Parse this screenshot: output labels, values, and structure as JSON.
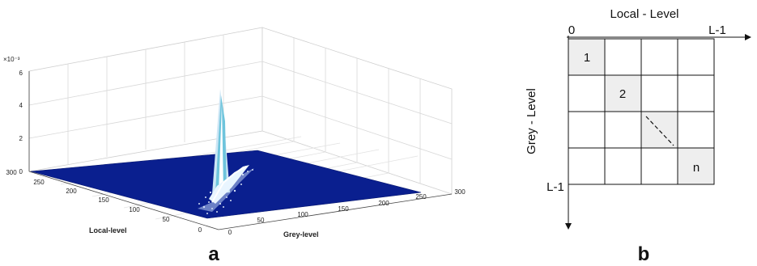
{
  "panel_a": {
    "letter": "a",
    "z_exponent": "×10⁻³",
    "z_ticks": [
      "0",
      "2",
      "4",
      "6"
    ],
    "left_axis_ticks": [
      "0",
      "50",
      "100",
      "150",
      "200",
      "250",
      "300"
    ],
    "right_axis_ticks": [
      "0",
      "50",
      "100",
      "150",
      "200",
      "250",
      "300"
    ],
    "left_axis_label": "Local-level",
    "right_axis_label": "Grey-level",
    "surface_color": "#0a1f8f"
  },
  "panel_b": {
    "letter": "b",
    "top_label": "Local - Level",
    "side_label": "Grey - Level",
    "origin": "0",
    "top_end": "L-1",
    "side_end": "L-1",
    "cells": [
      "1",
      "2",
      "n"
    ],
    "diag_fill": "#eeeeee"
  }
}
